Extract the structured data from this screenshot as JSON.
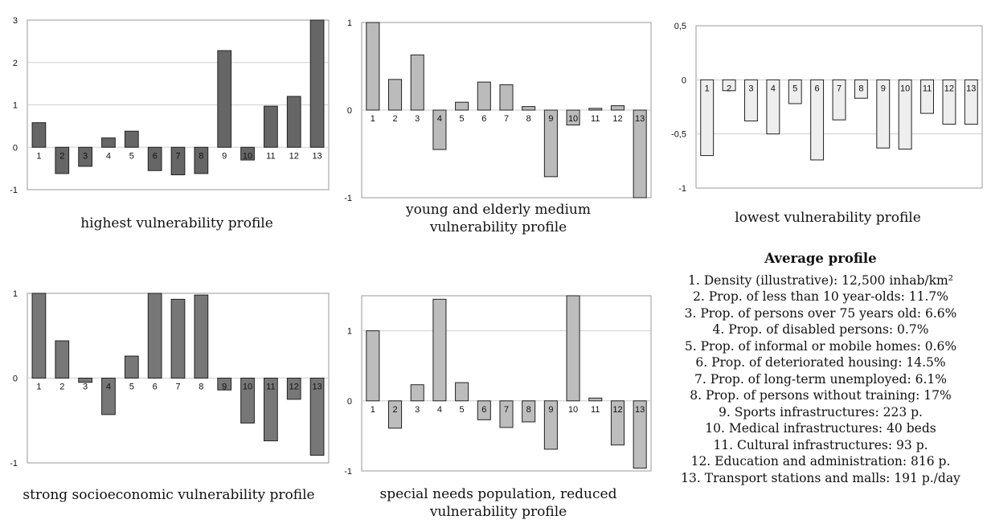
{
  "chart_data": [
    {
      "type": "bar",
      "title": "highest vulnerability profile",
      "categories": [
        "1",
        "2",
        "3",
        "4",
        "5",
        "6",
        "7",
        "8",
        "9",
        "10",
        "11",
        "12",
        "13"
      ],
      "values": [
        0.58,
        -0.62,
        -0.45,
        0.22,
        0.38,
        -0.55,
        -0.65,
        -0.62,
        2.28,
        -0.3,
        0.97,
        1.2,
        3.0
      ],
      "ylim": [
        -1,
        3
      ],
      "yticks": [
        "-1",
        "0",
        "1",
        "2",
        "3"
      ],
      "bar_color": "#666666"
    },
    {
      "type": "bar",
      "title": "young and elderly medium vulnerability profile",
      "categories": [
        "1",
        "2",
        "3",
        "4",
        "5",
        "6",
        "7",
        "8",
        "9",
        "10",
        "11",
        "12",
        "13"
      ],
      "values": [
        1.0,
        0.35,
        0.63,
        -0.45,
        0.09,
        0.32,
        0.29,
        0.04,
        -0.76,
        -0.17,
        0.02,
        0.05,
        -1.0
      ],
      "ylim": [
        -1,
        1
      ],
      "yticks": [
        "-1",
        "0",
        "1"
      ],
      "bar_color": "#bbbbbb"
    },
    {
      "type": "bar",
      "title": "lowest vulnerability profile",
      "categories": [
        "1",
        "2",
        "3",
        "4",
        "5",
        "6",
        "7",
        "8",
        "9",
        "10",
        "11",
        "12",
        "13"
      ],
      "values": [
        -0.7,
        -0.1,
        -0.38,
        -0.5,
        -0.22,
        -0.74,
        -0.37,
        -0.17,
        -0.63,
        -0.64,
        -0.31,
        -0.41,
        -0.41
      ],
      "ylim": [
        -1,
        0.5
      ],
      "yticks": [
        "-1",
        "-0,5",
        "0",
        "0,5"
      ],
      "bar_color": "#eeeeee"
    },
    {
      "type": "bar",
      "title": "strong socioeconomic vulnerability profile",
      "categories": [
        "1",
        "2",
        "3",
        "4",
        "5",
        "6",
        "7",
        "8",
        "9",
        "10",
        "11",
        "12",
        "13"
      ],
      "values": [
        1.0,
        0.44,
        -0.05,
        -0.43,
        0.26,
        1.0,
        0.93,
        0.98,
        -0.14,
        -0.53,
        -0.74,
        -0.25,
        -0.91
      ],
      "ylim": [
        -1,
        1
      ],
      "yticks": [
        "-1",
        "0",
        "1"
      ],
      "bar_color": "#777777"
    },
    {
      "type": "bar",
      "title": "special needs population, reduced vulnerability profile",
      "categories": [
        "1",
        "2",
        "3",
        "4",
        "5",
        "6",
        "7",
        "8",
        "9",
        "10",
        "11",
        "12",
        "13"
      ],
      "values": [
        1.0,
        -0.39,
        0.23,
        1.45,
        0.26,
        -0.27,
        -0.38,
        -0.3,
        -0.69,
        1.5,
        0.04,
        -0.63,
        -0.96
      ],
      "ylim": [
        -1,
        1.5
      ],
      "yticks": [
        "-1",
        "0",
        "1"
      ],
      "bar_color": "#bdbdbd"
    }
  ],
  "captions": [
    "highest vulnerability profile",
    "young and elderly medium vulnerability profile",
    "lowest vulnerability profile",
    "strong socioeconomic vulnerability profile",
    "special needs population, reduced vulnerability profile"
  ],
  "legend": {
    "title": "Average profile",
    "items": [
      "1. Density (illustrative): 12,500 inhab/km²",
      "2. Prop. of less than 10 year-olds: 11.7%",
      "3. Prop. of persons over 75 years old: 6.6%",
      "4. Prop. of disabled persons: 0.7%",
      "5. Prop. of informal or mobile homes: 0.6%",
      "6. Prop. of deteriorated housing: 14.5%",
      "7. Prop. of long-term unemployed: 6.1%",
      "8. Prop. of persons without training: 17%",
      "9. Sports infrastructures: 223 p.",
      "10. Medical infrastructures: 40 beds",
      "11. Cultural infrastructures: 93 p.",
      "12. Education and administration: 816 p.",
      "13. Transport stations and malls: 191 p./day"
    ]
  }
}
